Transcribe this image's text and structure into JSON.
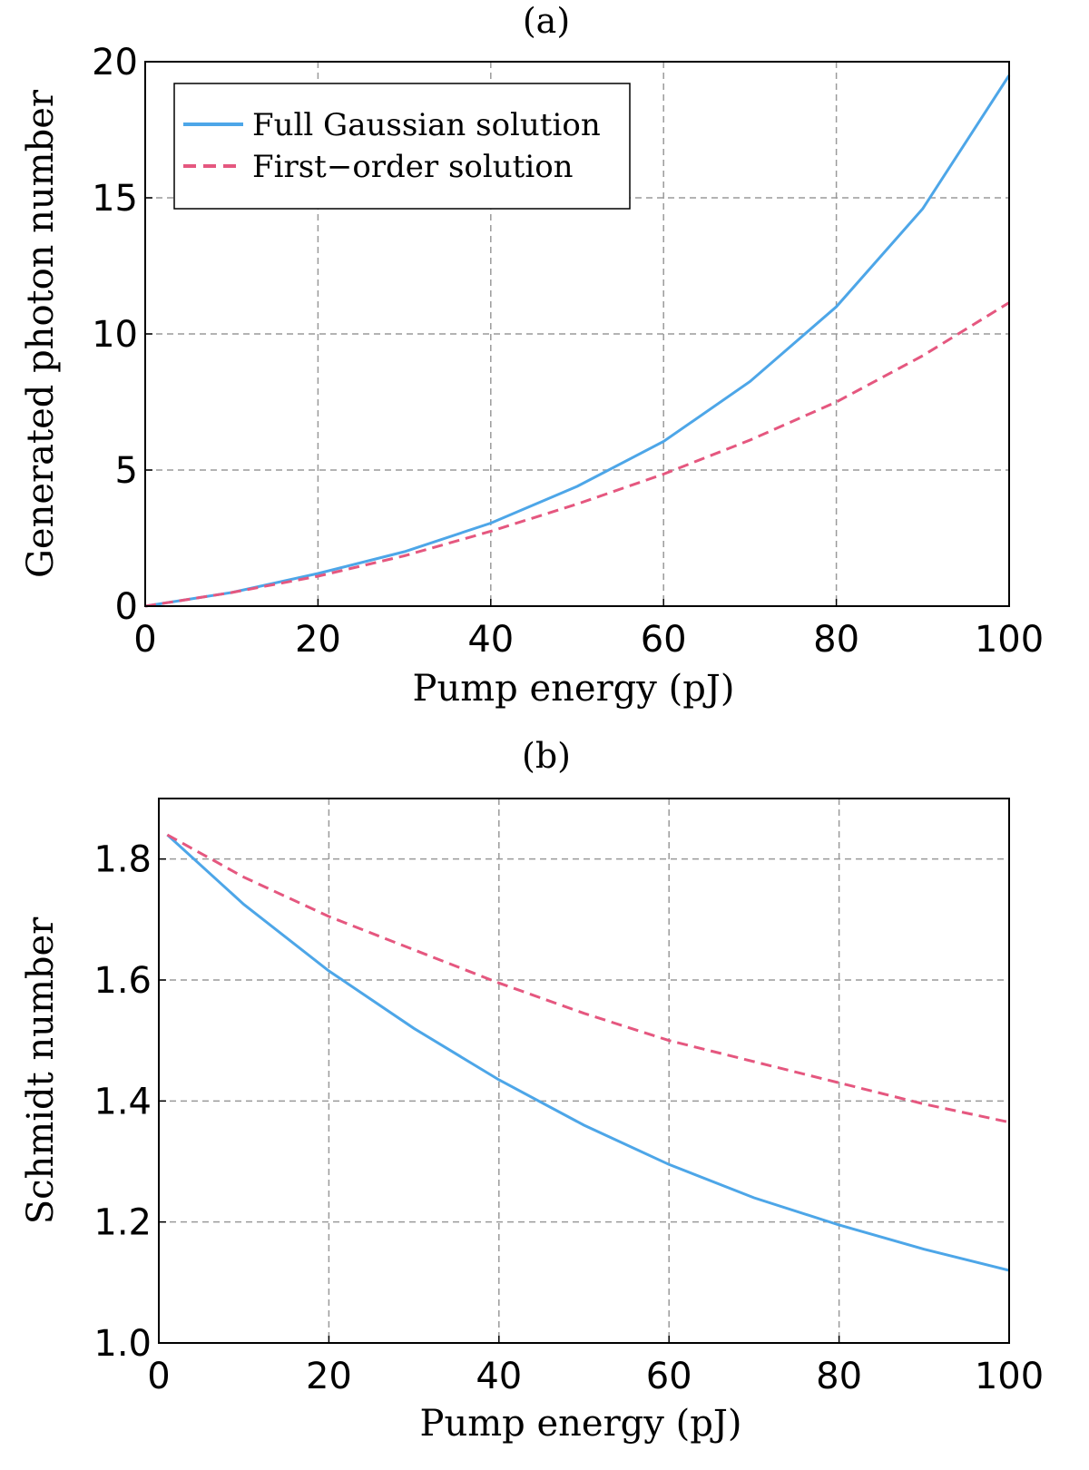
{
  "colors": {
    "full": "#4DA6E8",
    "first": "#E5577F"
  },
  "chart_data": [
    {
      "type": "line",
      "title": "(a)",
      "xlabel": "Pump energy (pJ)",
      "ylabel": "Generated photon number",
      "xlim": [
        0,
        100
      ],
      "ylim": [
        0,
        20
      ],
      "xticks": [
        0,
        20,
        40,
        60,
        80,
        100
      ],
      "yticks": [
        0,
        5,
        10,
        15,
        20
      ],
      "xtick_labels": [
        "0",
        "20",
        "40",
        "60",
        "80",
        "100"
      ],
      "ytick_labels": [
        "0",
        "5",
        "10",
        "15",
        "20"
      ],
      "grid": true,
      "legend": {
        "placement": "top-left",
        "entries": [
          "Full Gaussian solution",
          "First−order solution"
        ]
      },
      "series": [
        {
          "name": "Full Gaussian solution",
          "style": "solid",
          "x": [
            0,
            10,
            20,
            30,
            40,
            50,
            60,
            70,
            80,
            90,
            100
          ],
          "y": [
            0,
            0.5,
            1.2,
            2.0,
            3.05,
            4.4,
            6.05,
            8.25,
            11.0,
            14.6,
            19.5
          ]
        },
        {
          "name": "First−order solution",
          "style": "dashed",
          "x": [
            0,
            10,
            20,
            30,
            40,
            50,
            60,
            70,
            80,
            90,
            100
          ],
          "y": [
            0,
            0.5,
            1.1,
            1.85,
            2.75,
            3.75,
            4.85,
            6.1,
            7.5,
            9.2,
            11.15
          ]
        }
      ]
    },
    {
      "type": "line",
      "title": "(b)",
      "xlabel": "Pump energy (pJ)",
      "ylabel": "Schmidt number",
      "xlim": [
        0,
        100
      ],
      "ylim": [
        1.0,
        1.9
      ],
      "xticks": [
        0,
        20,
        40,
        60,
        80,
        100
      ],
      "yticks": [
        1.0,
        1.2,
        1.4,
        1.6,
        1.8
      ],
      "xtick_labels": [
        "0",
        "20",
        "40",
        "60",
        "80",
        "100"
      ],
      "ytick_labels": [
        "1.0",
        "1.2",
        "1.4",
        "1.6",
        "1.8"
      ],
      "grid": true,
      "series": [
        {
          "name": "Full Gaussian solution",
          "style": "solid",
          "x": [
            1,
            10,
            20,
            30,
            40,
            50,
            60,
            70,
            80,
            90,
            100
          ],
          "y": [
            1.84,
            1.725,
            1.615,
            1.52,
            1.435,
            1.36,
            1.295,
            1.24,
            1.195,
            1.155,
            1.12
          ]
        },
        {
          "name": "First−order solution",
          "style": "dashed",
          "x": [
            1,
            10,
            20,
            30,
            40,
            50,
            60,
            70,
            80,
            90,
            100
          ],
          "y": [
            1.84,
            1.77,
            1.705,
            1.65,
            1.595,
            1.545,
            1.5,
            1.465,
            1.43,
            1.395,
            1.365
          ]
        }
      ]
    }
  ]
}
